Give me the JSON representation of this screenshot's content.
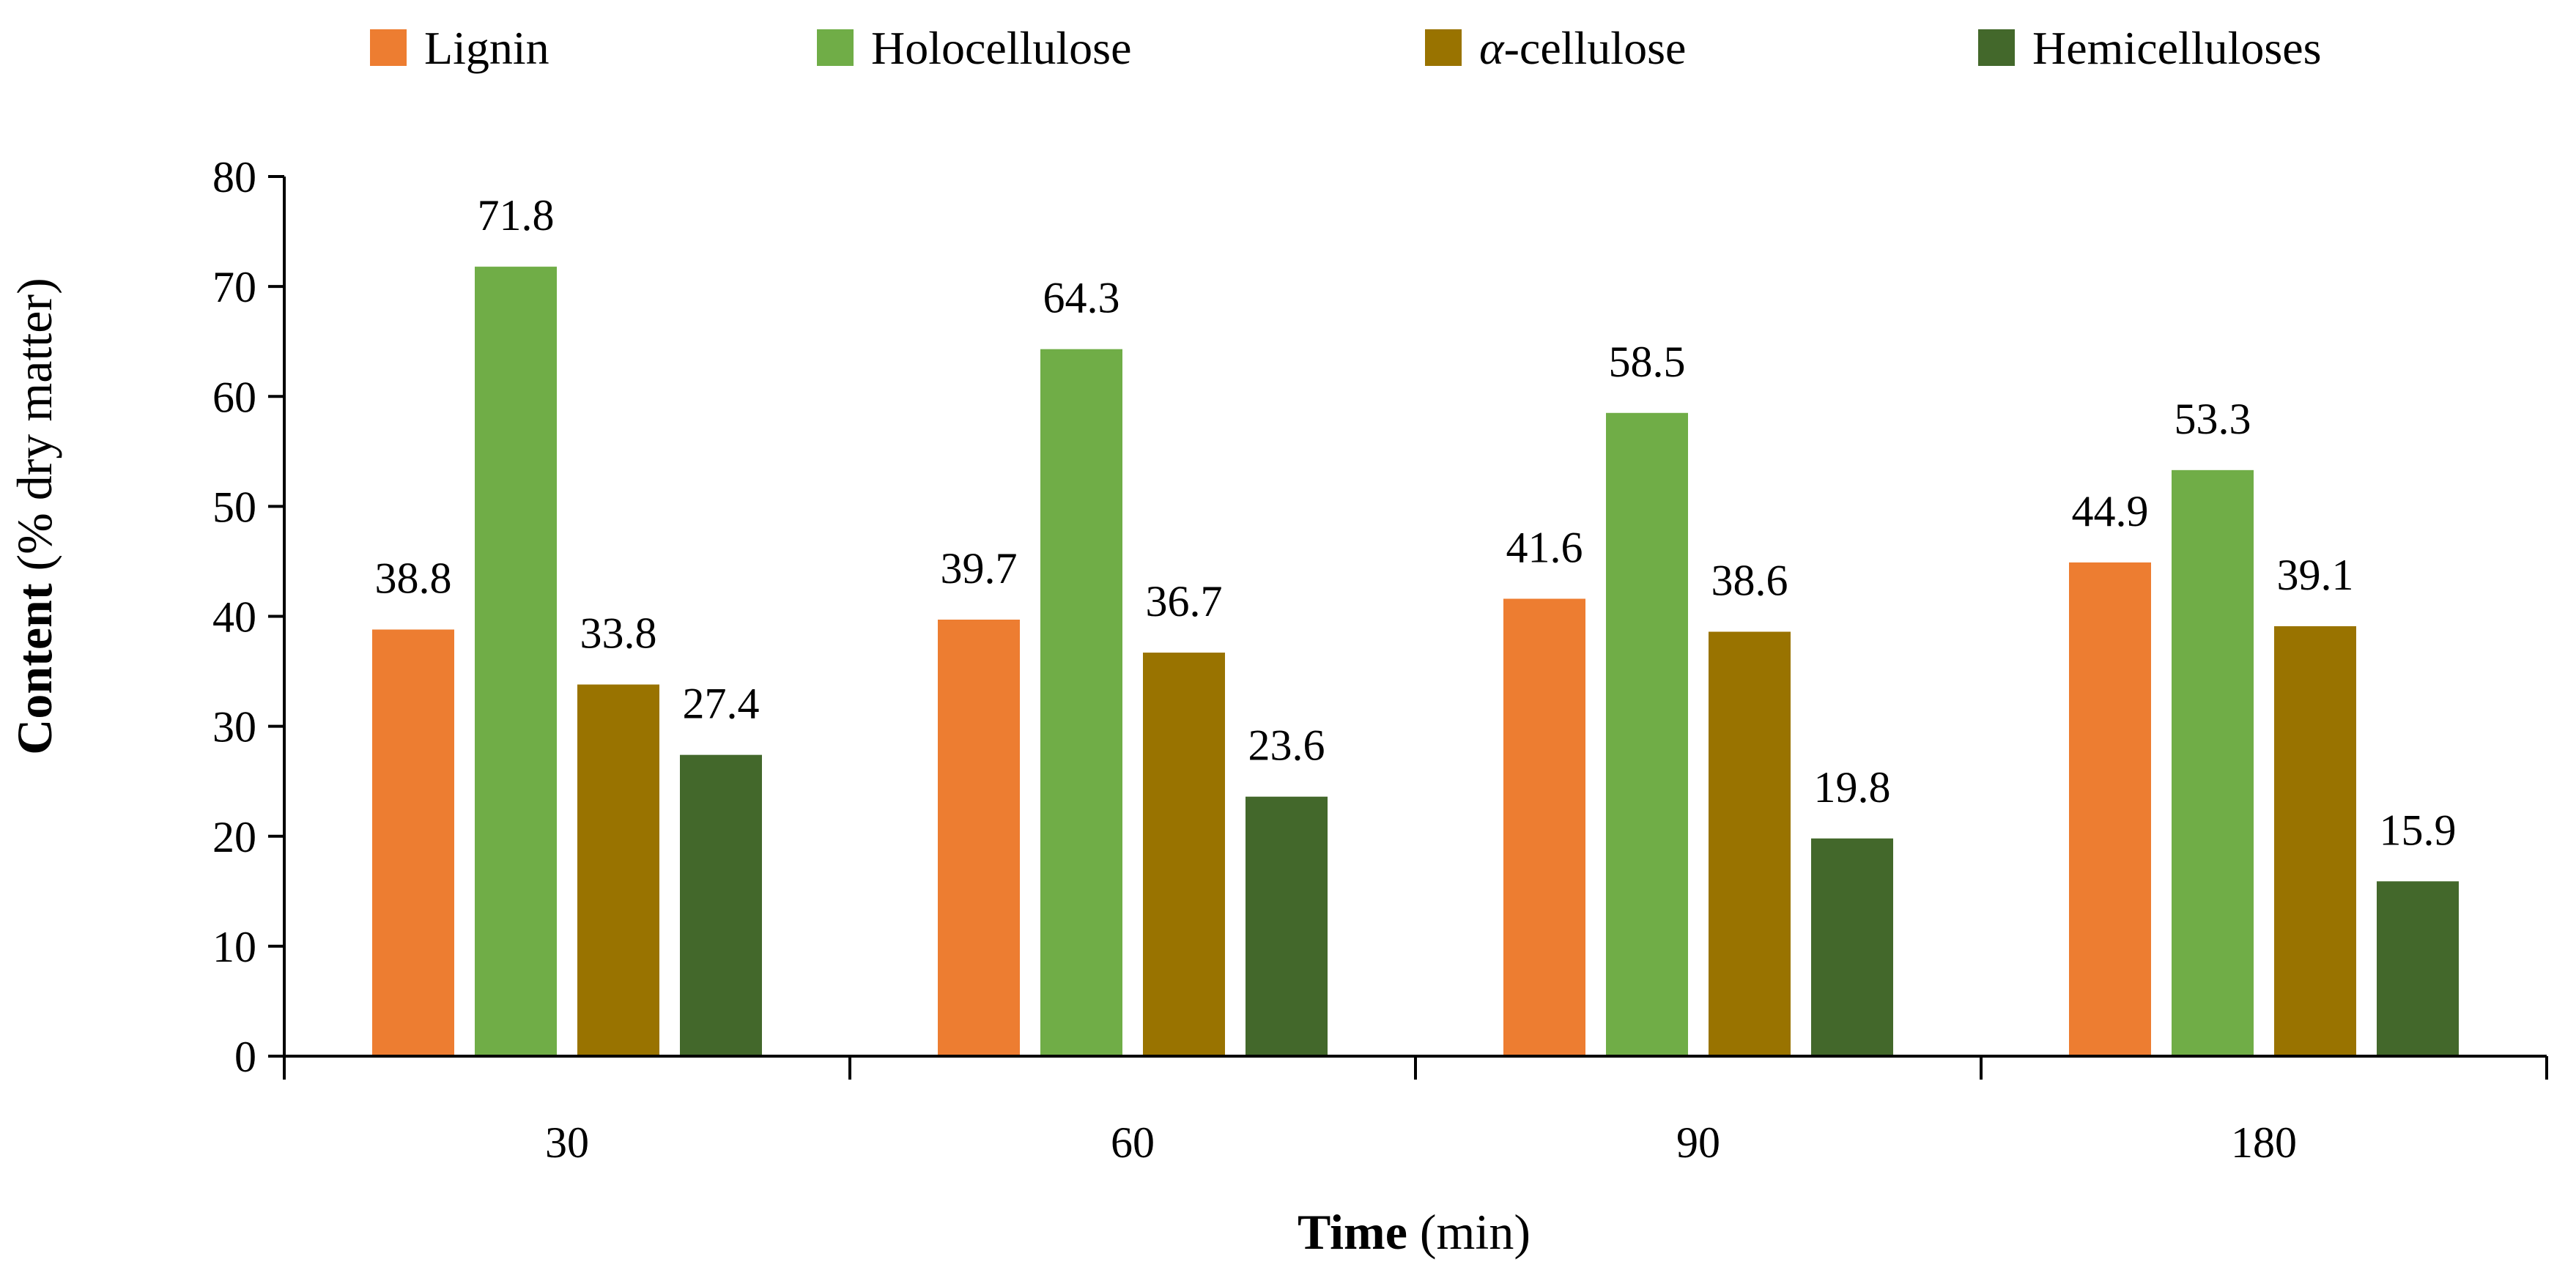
{
  "chart_data": {
    "type": "bar",
    "title": "",
    "categories": [
      "30",
      "60",
      "90",
      "180"
    ],
    "series": [
      {
        "name": "Lignin",
        "color": "#ED7D31",
        "values": [
          38.8,
          39.7,
          41.6,
          44.9
        ]
      },
      {
        "name": "Holocellulose",
        "color": "#70AD47",
        "values": [
          71.8,
          64.3,
          58.5,
          53.3
        ]
      },
      {
        "name": "α-cellulose",
        "color": "#997300",
        "values": [
          33.8,
          36.7,
          38.6,
          39.1
        ]
      },
      {
        "name": "Hemicelluloses",
        "color": "#43682B",
        "values": [
          27.4,
          23.6,
          19.8,
          15.9
        ]
      }
    ],
    "ylim": [
      0,
      80
    ],
    "yticks": [
      0,
      10,
      20,
      30,
      40,
      50,
      60,
      70,
      80
    ],
    "xlabel": {
      "bold": "Time",
      "rest": " (min)"
    },
    "ylabel": {
      "bold": "Content",
      "rest": " (% dry matter)"
    },
    "legend_position": "top",
    "grid": false
  }
}
